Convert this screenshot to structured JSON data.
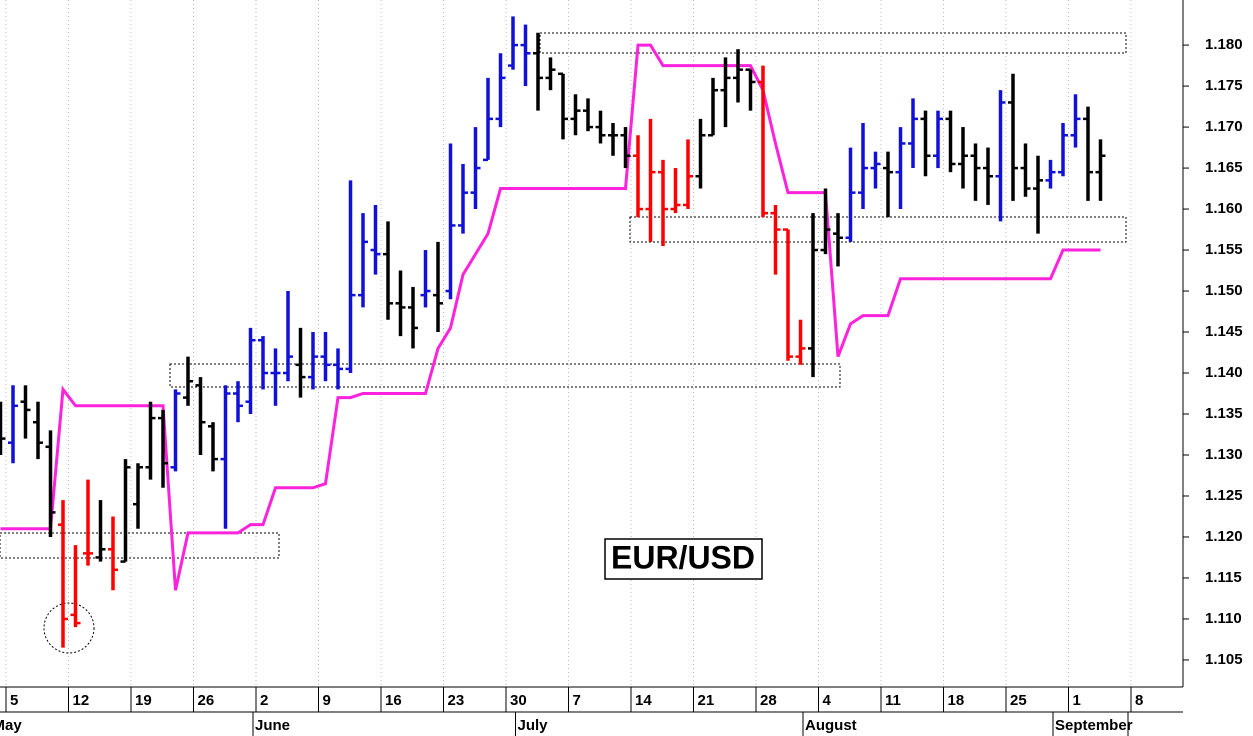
{
  "chart_data": {
    "type": "ohlc",
    "title": "EUR/USD",
    "categories": [
      null,
      "5",
      null,
      null,
      null,
      null,
      "12",
      null,
      null,
      null,
      null,
      "19",
      null,
      null,
      null,
      null,
      "26",
      null,
      null,
      null,
      null,
      "2",
      null,
      null,
      null,
      null,
      "9",
      null,
      null,
      null,
      null,
      "16",
      null,
      null,
      null,
      null,
      "23",
      null,
      null,
      null,
      null,
      "30",
      null,
      null,
      null,
      null,
      "7",
      null,
      null,
      null,
      null,
      "14",
      null,
      null,
      null,
      null,
      "21",
      null,
      null,
      null,
      null,
      "28",
      null,
      null,
      null,
      null,
      "4",
      null,
      null,
      null,
      null,
      "11",
      null,
      null,
      null,
      null,
      "18",
      null,
      null,
      null,
      null,
      "25",
      null,
      null,
      null,
      null,
      "1",
      null,
      null,
      null,
      null,
      "8"
    ],
    "months": [
      "May",
      null,
      null,
      null,
      null,
      null,
      null,
      null,
      null,
      null,
      null,
      null,
      null,
      null,
      null,
      null,
      null,
      null,
      null,
      null,
      null,
      "June",
      null,
      null,
      null,
      null,
      null,
      null,
      null,
      null,
      null,
      null,
      null,
      null,
      null,
      null,
      null,
      null,
      null,
      null,
      null,
      null,
      "July",
      null,
      null,
      null,
      null,
      null,
      null,
      null,
      null,
      null,
      null,
      null,
      null,
      null,
      null,
      null,
      null,
      null,
      null,
      null,
      null,
      null,
      null,
      "August",
      null,
      null,
      null,
      null,
      null,
      null,
      null,
      null,
      null,
      null,
      null,
      null,
      null,
      null,
      null,
      null,
      null,
      null,
      null,
      "September",
      null,
      null,
      null,
      null,
      null
    ],
    "open": [
      1.133,
      1.1315,
      1.1365,
      1.134,
      1.131,
      1.1215,
      1.1105,
      1.118,
      1.1175,
      1.1185,
      1.117,
      1.124,
      1.1285,
      1.1345,
      1.1285,
      1.137,
      1.1385,
      1.1335,
      1.1295,
      1.1375,
      1.1365,
      1.144,
      1.14,
      1.14,
      1.141,
      1.1395,
      1.142,
      1.141,
      1.1405,
      1.1495,
      1.155,
      1.1545,
      1.1485,
      1.148,
      1.1495,
      1.1495,
      1.15,
      1.158,
      1.162,
      1.166,
      1.171,
      1.1775,
      1.18,
      1.179,
      1.176,
      1.1765,
      1.171,
      1.172,
      1.17,
      1.169,
      1.169,
      1.1665,
      1.16,
      1.1645,
      1.16,
      1.1605,
      1.164,
      1.169,
      1.1745,
      1.176,
      1.177,
      1.1755,
      1.1595,
      1.1575,
      1.142,
      1.143,
      1.155,
      1.157,
      1.1565,
      1.162,
      1.165,
      1.165,
      1.1645,
      1.168,
      1.171,
      1.1665,
      1.171,
      1.1655,
      1.1665,
      1.165,
      1.164,
      1.173,
      1.165,
      1.1625,
      1.1635,
      1.1645,
      1.169,
      1.171,
      1.1645,
      null,
      null,
      null
    ],
    "high": [
      1.1365,
      1.1385,
      1.1385,
      1.1365,
      1.133,
      1.1245,
      1.119,
      1.127,
      1.1245,
      1.1225,
      1.1295,
      1.129,
      1.1365,
      1.1355,
      1.138,
      1.142,
      1.1395,
      1.134,
      1.1385,
      1.139,
      1.1455,
      1.1445,
      1.143,
      1.15,
      1.1455,
      1.145,
      1.145,
      1.143,
      1.1635,
      1.1595,
      1.1605,
      1.1585,
      1.1525,
      1.1505,
      1.155,
      1.156,
      1.168,
      1.1655,
      1.17,
      1.176,
      1.179,
      1.1835,
      1.1825,
      1.1815,
      1.1785,
      1.1765,
      1.174,
      1.1735,
      1.172,
      1.1705,
      1.17,
      1.169,
      1.171,
      1.166,
      1.165,
      1.1685,
      1.171,
      1.176,
      1.1785,
      1.1795,
      1.177,
      1.1775,
      1.1605,
      1.1575,
      1.1465,
      1.1595,
      1.1625,
      1.1595,
      1.1675,
      1.1705,
      1.167,
      1.167,
      1.17,
      1.1735,
      1.172,
      1.172,
      1.172,
      1.17,
      1.168,
      1.1675,
      1.1745,
      1.1765,
      1.168,
      1.1665,
      1.166,
      1.1705,
      1.174,
      1.1725,
      1.1685,
      null,
      null,
      null
    ],
    "low": [
      1.13,
      1.129,
      1.132,
      1.1295,
      1.12,
      1.1065,
      1.109,
      1.1165,
      1.117,
      1.1135,
      1.117,
      1.121,
      1.127,
      1.126,
      1.128,
      1.136,
      1.13,
      1.128,
      1.121,
      1.134,
      1.135,
      1.138,
      1.136,
      1.139,
      1.137,
      1.138,
      1.139,
      1.138,
      1.14,
      1.148,
      1.152,
      1.1465,
      1.1445,
      1.143,
      1.148,
      1.145,
      1.149,
      1.157,
      1.16,
      1.166,
      1.17,
      1.177,
      1.175,
      1.172,
      1.1745,
      1.1685,
      1.169,
      1.1695,
      1.168,
      1.1665,
      1.165,
      1.159,
      1.156,
      1.1555,
      1.1595,
      1.16,
      1.1625,
      1.169,
      1.17,
      1.173,
      1.172,
      1.159,
      1.152,
      1.1415,
      1.141,
      1.1395,
      1.1545,
      1.153,
      1.156,
      1.16,
      1.1625,
      1.159,
      1.16,
      1.165,
      1.164,
      1.165,
      1.1645,
      1.1625,
      1.161,
      1.1605,
      1.1585,
      1.161,
      1.1615,
      1.157,
      1.1625,
      1.164,
      1.1675,
      1.161,
      1.161,
      null,
      null,
      null
    ],
    "close": [
      1.132,
      1.136,
      1.1355,
      1.1315,
      1.123,
      1.11,
      1.1095,
      1.118,
      1.1185,
      1.116,
      1.1285,
      1.1285,
      1.1345,
      1.129,
      1.1375,
      1.139,
      1.134,
      1.1295,
      1.1375,
      1.136,
      1.144,
      1.14,
      1.14,
      1.142,
      1.1395,
      1.142,
      1.141,
      1.1405,
      1.1495,
      1.156,
      1.1545,
      1.1485,
      1.148,
      1.1455,
      1.15,
      1.1485,
      1.158,
      1.162,
      1.165,
      1.171,
      1.176,
      1.18,
      1.179,
      1.176,
      1.177,
      1.171,
      1.172,
      1.17,
      1.169,
      1.169,
      1.1665,
      1.16,
      1.1645,
      1.16,
      1.1605,
      1.164,
      1.169,
      1.1745,
      1.176,
      1.177,
      1.1755,
      1.1595,
      1.1575,
      1.142,
      1.143,
      1.155,
      1.1575,
      1.1565,
      1.162,
      1.165,
      1.1655,
      1.1645,
      1.168,
      1.171,
      1.1665,
      1.171,
      1.1655,
      1.1665,
      1.165,
      1.164,
      1.173,
      1.165,
      1.1625,
      1.1635,
      1.1645,
      1.169,
      1.171,
      1.1645,
      1.1665,
      null,
      null,
      null
    ],
    "bar_colors": [
      "#000000",
      "#1010d8",
      "#000000",
      "#000000",
      "#000000",
      "#ff0000",
      "#ff0000",
      "#ff0000",
      "#000000",
      "#ff0000",
      "#000000",
      "#000000",
      "#000000",
      "#000000",
      "#1010d8",
      "#000000",
      "#000000",
      "#000000",
      "#1010d8",
      "#1010d8",
      "#1010d8",
      "#1010d8",
      "#1010d8",
      "#1010d8",
      "#000000",
      "#1010d8",
      "#1010d8",
      "#1010d8",
      "#1010d8",
      "#1010d8",
      "#1010d8",
      "#000000",
      "#000000",
      "#000000",
      "#1010d8",
      "#000000",
      "#1010d8",
      "#1010d8",
      "#1010d8",
      "#1010d8",
      "#1010d8",
      "#1010d8",
      "#1010d8",
      "#000000",
      "#000000",
      "#000000",
      "#000000",
      "#000000",
      "#000000",
      "#000000",
      "#000000",
      "#ff0000",
      "#ff0000",
      "#ff0000",
      "#ff0000",
      "#ff0000",
      "#000000",
      "#000000",
      "#000000",
      "#000000",
      "#000000",
      "#ff0000",
      "#ff0000",
      "#ff0000",
      "#ff0000",
      "#000000",
      "#000000",
      "#000000",
      "#1010d8",
      "#1010d8",
      "#1010d8",
      "#000000",
      "#1010d8",
      "#1010d8",
      "#000000",
      "#1010d8",
      "#000000",
      "#000000",
      "#000000",
      "#000000",
      "#1010d8",
      "#000000",
      "#000000",
      "#000000",
      "#1010d8",
      "#1010d8",
      "#1010d8",
      "#000000",
      "#000000",
      null,
      null,
      null
    ],
    "stop_line": {
      "color": "#ff22dd",
      "values": [
        1.121,
        1.121,
        1.121,
        1.121,
        1.121,
        1.138,
        1.136,
        1.136,
        1.136,
        1.136,
        1.136,
        1.136,
        1.136,
        1.136,
        1.1135,
        1.1205,
        1.1205,
        1.1205,
        1.1205,
        1.1205,
        1.1215,
        1.1215,
        1.126,
        1.126,
        1.126,
        1.126,
        1.1265,
        1.137,
        1.137,
        1.1375,
        1.1375,
        1.1375,
        1.1375,
        1.1375,
        1.1375,
        1.143,
        1.1455,
        1.152,
        1.1545,
        1.157,
        1.1625,
        1.1625,
        1.1625,
        1.1625,
        1.1625,
        1.1625,
        1.1625,
        1.1625,
        1.1625,
        1.1625,
        1.1625,
        1.18,
        1.18,
        1.1775,
        1.1775,
        1.1775,
        1.1775,
        1.1775,
        1.1775,
        1.1775,
        1.1775,
        1.1745,
        1.168,
        1.162,
        1.162,
        1.162,
        1.162,
        1.142,
        1.146,
        1.147,
        1.147,
        1.147,
        1.1515,
        1.1515,
        1.1515,
        1.1515,
        1.1515,
        1.1515,
        1.1515,
        1.1515,
        1.1515,
        1.1515,
        1.1515,
        1.1515,
        1.1515,
        1.155,
        1.155,
        1.155,
        1.155,
        null,
        null,
        null
      ]
    },
    "ylim": [
      1.1017,
      1.1855
    ],
    "yticks": [
      {
        "value": 1.105,
        "label": "1.105"
      },
      {
        "value": 1.11,
        "label": "1.110"
      },
      {
        "value": 1.115,
        "label": "1.115"
      },
      {
        "value": 1.12,
        "label": "1.120"
      },
      {
        "value": 1.125,
        "label": "1.125"
      },
      {
        "value": 1.13,
        "label": "1.130"
      },
      {
        "value": 1.135,
        "label": "1.135"
      },
      {
        "value": 1.14,
        "label": "1.140"
      },
      {
        "value": 1.145,
        "label": "1.145"
      },
      {
        "value": 1.15,
        "label": "1.150"
      },
      {
        "value": 1.155,
        "label": "1.155"
      },
      {
        "value": 1.16,
        "label": "1.160"
      },
      {
        "value": 1.165,
        "label": "1.165"
      },
      {
        "value": 1.17,
        "label": "1.170"
      },
      {
        "value": 1.175,
        "label": "1.175"
      },
      {
        "value": 1.18,
        "label": "1.180"
      }
    ],
    "grid": true
  }
}
